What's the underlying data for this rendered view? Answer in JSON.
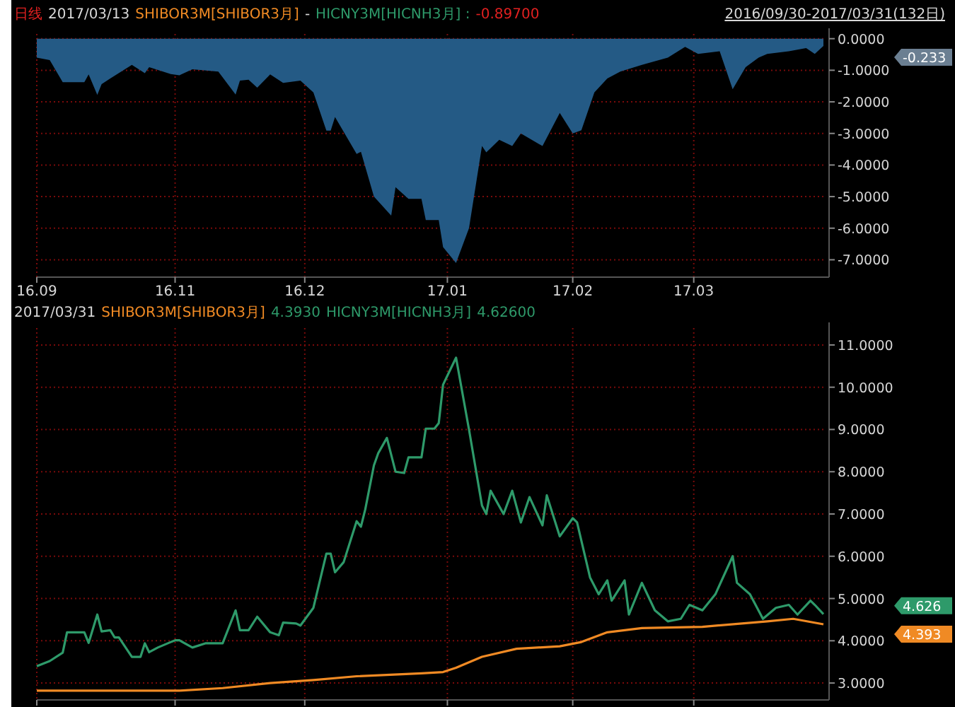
{
  "chart_data": [
    {
      "type": "area",
      "title": "日线",
      "x": [
        "2016-09-30",
        "2016-10-03",
        "2016-10-06",
        "2016-10-11",
        "2016-10-12",
        "2016-10-14",
        "2016-10-15",
        "2016-10-17",
        "2016-10-22",
        "2016-10-25",
        "2016-10-26",
        "2016-10-31",
        "2016-11-02",
        "2016-11-05",
        "2016-11-11",
        "2016-11-15",
        "2016-11-16",
        "2016-11-18",
        "2016-11-20",
        "2016-11-23",
        "2016-11-26",
        "2016-11-30",
        "2016-12-03",
        "2016-12-06",
        "2016-12-07",
        "2016-12-08",
        "2016-12-13",
        "2016-12-14",
        "2016-12-17",
        "2016-12-21",
        "2016-12-22",
        "2016-12-25",
        "2016-12-28",
        "2016-12-29",
        "2017-01-01",
        "2017-01-02",
        "2017-01-05",
        "2017-01-08",
        "2017-01-11",
        "2017-01-12",
        "2017-01-15",
        "2017-01-18",
        "2017-01-20",
        "2017-01-25",
        "2017-01-29",
        "2017-02-01",
        "2017-02-03",
        "2017-02-06",
        "2017-02-09",
        "2017-02-12",
        "2017-02-17",
        "2017-02-23",
        "2017-02-27",
        "2017-03-02",
        "2017-03-07",
        "2017-03-10",
        "2017-03-13",
        "2017-03-16",
        "2017-03-18",
        "2017-03-23",
        "2017-03-27",
        "2017-03-29",
        "2017-03-31"
      ],
      "series": [
        {
          "color": "#245a85",
          "values": [
            -0.6,
            -0.68,
            -1.38,
            -1.38,
            -1.13,
            -1.78,
            -1.44,
            -1.26,
            -0.83,
            -1.09,
            -0.9,
            -1.12,
            -1.16,
            -0.97,
            -1.04,
            -1.77,
            -1.33,
            -1.3,
            -1.55,
            -1.13,
            -1.4,
            -1.33,
            -1.7,
            -2.91,
            -2.91,
            -2.48,
            -3.65,
            -3.58,
            -5.0,
            -5.6,
            -4.7,
            -5.07,
            -5.07,
            -5.74,
            -5.74,
            -6.6,
            -7.1,
            -6.0,
            -3.4,
            -3.6,
            -3.2,
            -3.4,
            -3.0,
            -3.4,
            -2.35,
            -3.0,
            -2.9,
            -1.7,
            -1.26,
            -1.04,
            -0.83,
            -0.6,
            -0.26,
            -0.48,
            -0.4,
            -1.6,
            -0.9,
            -0.6,
            -0.48,
            -0.4,
            -0.3,
            -0.48,
            -0.23
          ]
        }
      ],
      "xlim": [
        "2016-09-30",
        "2017-03-31"
      ],
      "xticks": [
        {
          "value": "2016-09-30",
          "label": "16.09"
        },
        {
          "value": "2016-11-01",
          "label": "16.11"
        },
        {
          "value": "2016-12-01",
          "label": "16.12"
        },
        {
          "value": "2017-01-03",
          "label": "17.01"
        },
        {
          "value": "2017-02-01",
          "label": "17.02"
        },
        {
          "value": "2017-03-01",
          "label": "17.03"
        }
      ],
      "ylim": [
        -7.55,
        0.15
      ],
      "yticks": [
        {
          "value": 0,
          "label": "0.0000"
        },
        {
          "value": -1,
          "label": "-1.0000"
        },
        {
          "value": -2,
          "label": "-2.0000"
        },
        {
          "value": -3,
          "label": "-3.0000"
        },
        {
          "value": -4,
          "label": "-4.0000"
        },
        {
          "value": -5,
          "label": "-5.0000"
        },
        {
          "value": -6,
          "label": "-6.0000"
        },
        {
          "value": -7,
          "label": "-7.0000"
        }
      ],
      "grid": true,
      "annotations": [
        "2017/03/13",
        "SHIBOR3M[SHIBOR3月]",
        "-",
        "HICNY3M[HICNH3月] :",
        "-0.89700",
        "2016/09/30-2017/03/31(132日)",
        "-0.233"
      ]
    },
    {
      "type": "line",
      "series": [
        {
          "name": "SHIBOR3M[SHIBOR3月]",
          "color": "#f08a24",
          "x": [
            "2016-09-30",
            "2016-11-02",
            "2016-11-12",
            "2016-11-23",
            "2016-12-03",
            "2016-12-13",
            "2016-12-28",
            "2017-01-02",
            "2017-01-05",
            "2017-01-11",
            "2017-01-19",
            "2017-01-29",
            "2017-02-03",
            "2017-02-09",
            "2017-02-17",
            "2017-03-03",
            "2017-03-18",
            "2017-03-24",
            "2017-03-31"
          ],
          "values": [
            2.82,
            2.82,
            2.88,
            3.0,
            3.07,
            3.16,
            3.23,
            3.26,
            3.36,
            3.62,
            3.81,
            3.87,
            3.97,
            4.2,
            4.3,
            4.33,
            4.46,
            4.52,
            4.39
          ]
        },
        {
          "name": "HICNY3M[HICNH3月]",
          "color": "#2e9a6a",
          "x": [
            "2016-09-30",
            "2016-10-03",
            "2016-10-06",
            "2016-10-07",
            "2016-10-11",
            "2016-10-12",
            "2016-10-14",
            "2016-10-15",
            "2016-10-17",
            "2016-10-18",
            "2016-10-19",
            "2016-10-22",
            "2016-10-24",
            "2016-10-25",
            "2016-10-26",
            "2016-10-28",
            "2016-10-31",
            "2016-11-01",
            "2016-11-02",
            "2016-11-05",
            "2016-11-08",
            "2016-11-12",
            "2016-11-15",
            "2016-11-16",
            "2016-11-18",
            "2016-11-20",
            "2016-11-23",
            "2016-11-25",
            "2016-11-26",
            "2016-11-29",
            "2016-11-30",
            "2016-12-03",
            "2016-12-06",
            "2016-12-07",
            "2016-12-08",
            "2016-12-10",
            "2016-12-13",
            "2016-12-14",
            "2016-12-15",
            "2016-12-17",
            "2016-12-18",
            "2016-12-20",
            "2016-12-22",
            "2016-12-24",
            "2016-12-25",
            "2016-12-28",
            "2016-12-29",
            "2016-12-31",
            "2017-01-01",
            "2017-01-02",
            "2017-01-05",
            "2017-01-08",
            "2017-01-11",
            "2017-01-12",
            "2017-01-13",
            "2017-01-16",
            "2017-01-18",
            "2017-01-20",
            "2017-01-22",
            "2017-01-25",
            "2017-01-26",
            "2017-01-29",
            "2017-02-01",
            "2017-02-02",
            "2017-02-05",
            "2017-02-07",
            "2017-02-09",
            "2017-02-10",
            "2017-02-13",
            "2017-02-14",
            "2017-02-17",
            "2017-02-20",
            "2017-02-23",
            "2017-02-26",
            "2017-02-28",
            "2017-03-03",
            "2017-03-06",
            "2017-03-10",
            "2017-03-11",
            "2017-03-14",
            "2017-03-17",
            "2017-03-20",
            "2017-03-23",
            "2017-03-25",
            "2017-03-28",
            "2017-03-29",
            "2017-03-31"
          ],
          "values": [
            3.4,
            3.52,
            3.72,
            4.2,
            4.2,
            3.95,
            4.62,
            4.22,
            4.25,
            4.08,
            4.08,
            3.62,
            3.62,
            3.94,
            3.73,
            3.84,
            3.97,
            4.01,
            4.01,
            3.84,
            3.94,
            3.94,
            4.72,
            4.25,
            4.25,
            4.57,
            4.2,
            4.13,
            4.43,
            4.41,
            4.36,
            4.78,
            6.06,
            6.06,
            5.62,
            5.86,
            6.83,
            6.7,
            7.11,
            8.15,
            8.44,
            8.8,
            8.0,
            7.97,
            8.34,
            8.34,
            9.02,
            9.02,
            9.15,
            10.06,
            10.7,
            9.0,
            7.2,
            7.0,
            7.55,
            7.0,
            7.55,
            6.8,
            7.4,
            6.73,
            7.44,
            6.47,
            6.9,
            6.8,
            5.5,
            5.1,
            5.43,
            4.95,
            5.43,
            4.62,
            5.37,
            4.72,
            4.46,
            4.52,
            4.85,
            4.72,
            5.1,
            6.0,
            5.37,
            5.1,
            4.52,
            4.78,
            4.85,
            4.62,
            4.95,
            4.85,
            4.63
          ]
        }
      ],
      "xlim": [
        "2016-09-30",
        "2017-03-31"
      ],
      "xticks": [
        {
          "value": "2016-09-30",
          "label": null
        },
        {
          "value": "2016-11-01",
          "label": null
        },
        {
          "value": "2016-12-01",
          "label": null
        },
        {
          "value": "2017-01-03",
          "label": null
        },
        {
          "value": "2017-02-01",
          "label": null
        },
        {
          "value": "2017-03-01",
          "label": null
        }
      ],
      "ylim": [
        2.6,
        11.4
      ],
      "yticks": [
        {
          "value": 3,
          "label": "3.0000"
        },
        {
          "value": 4,
          "label": "4.0000"
        },
        {
          "value": 5,
          "label": "5.0000"
        },
        {
          "value": 6,
          "label": "6.0000"
        },
        {
          "value": 7,
          "label": "7.0000"
        },
        {
          "value": 8,
          "label": "8.0000"
        },
        {
          "value": 9,
          "label": "9.0000"
        },
        {
          "value": 10,
          "label": "10.0000"
        },
        {
          "value": 11,
          "label": "11.0000"
        }
      ],
      "grid": true,
      "tick_labels": "y",
      "annotations": [
        "2017/03/31",
        "4.3930",
        "4.62600",
        "4.626",
        "4.393"
      ]
    }
  ]
}
